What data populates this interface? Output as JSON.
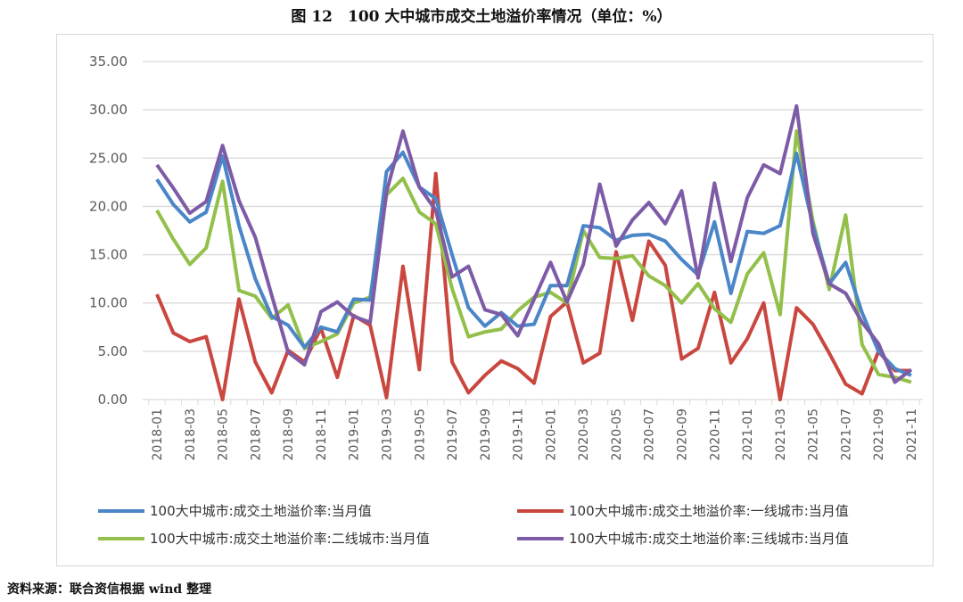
{
  "title": "图 12　100 大中城市成交土地溢价率情况（单位：%）",
  "source": "资料来源：联合资信根据 wind 整理",
  "chart_data": {
    "type": "line",
    "title": "图 12　100 大中城市成交土地溢价率情况（单位：%）",
    "xlabel": "",
    "ylabel": "",
    "ylim": [
      0,
      35
    ],
    "yticks": [
      "0.00",
      "5.00",
      "10.00",
      "15.00",
      "20.00",
      "25.00",
      "30.00",
      "35.00"
    ],
    "grid": true,
    "legend_position": "bottom",
    "x": [
      "2018-01",
      "2018-02",
      "2018-03",
      "2018-04",
      "2018-05",
      "2018-06",
      "2018-07",
      "2018-08",
      "2018-09",
      "2018-10",
      "2018-11",
      "2018-12",
      "2019-01",
      "2019-02",
      "2019-03",
      "2019-04",
      "2019-05",
      "2019-06",
      "2019-07",
      "2019-08",
      "2019-09",
      "2019-10",
      "2019-11",
      "2019-12",
      "2020-01",
      "2020-02",
      "2020-03",
      "2020-04",
      "2020-05",
      "2020-06",
      "2020-07",
      "2020-08",
      "2020-09",
      "2020-10",
      "2020-11",
      "2020-12",
      "2021-01",
      "2021-02",
      "2021-03",
      "2021-04",
      "2021-05",
      "2021-06",
      "2021-07",
      "2021-08",
      "2021-09",
      "2021-10",
      "2021-11"
    ],
    "xtick_labels": [
      "2018-01",
      "2018-03",
      "2018-05",
      "2018-07",
      "2018-09",
      "2018-11",
      "2019-01",
      "2019-03",
      "2019-05",
      "2019-07",
      "2019-09",
      "2019-11",
      "2020-01",
      "2020-03",
      "2020-05",
      "2020-07",
      "2020-09",
      "2020-11",
      "2021-01",
      "2021-03",
      "2021-05",
      "2021-07",
      "2021-09",
      "2021-11"
    ],
    "series": [
      {
        "name": "100大中城市:成交土地溢价率:当月值",
        "color": "#4a86c8",
        "values": [
          22.8,
          20.2,
          18.4,
          19.4,
          25.2,
          18.0,
          12.5,
          8.6,
          7.7,
          5.4,
          7.5,
          7.0,
          10.4,
          10.3,
          23.6,
          25.6,
          22.0,
          20.8,
          15.0,
          9.5,
          7.6,
          9.0,
          7.6,
          7.8,
          11.8,
          11.8,
          18.0,
          17.8,
          16.5,
          17.0,
          17.1,
          16.4,
          14.5,
          12.9,
          18.4,
          11.0,
          17.4,
          17.2,
          18.0,
          25.5,
          18.0,
          12.0,
          14.2,
          9.0,
          5.0,
          3.2,
          2.5
        ]
      },
      {
        "name": "100大中城市:成交土地溢价率:一线城市:当月值",
        "color": "#c9473f",
        "values": [
          10.9,
          6.9,
          6.0,
          6.5,
          0.0,
          10.4,
          3.9,
          0.7,
          5.1,
          3.9,
          7.4,
          2.3,
          8.7,
          7.7,
          0.2,
          13.8,
          3.1,
          23.4,
          3.9,
          0.7,
          2.5,
          4.0,
          3.2,
          1.7,
          8.6,
          10.1,
          3.8,
          4.8,
          15.3,
          8.2,
          16.4,
          13.9,
          4.2,
          5.3,
          11.1,
          3.8,
          6.3,
          10.0,
          0.0,
          9.5,
          7.8,
          4.8,
          1.6,
          0.6,
          5.0,
          3.0,
          3.0
        ]
      },
      {
        "name": "100大中城市:成交土地溢价率:二线城市:当月值",
        "color": "#92c04a",
        "values": [
          19.6,
          16.6,
          14.0,
          15.7,
          22.6,
          11.3,
          10.7,
          8.4,
          9.8,
          5.3,
          6.0,
          6.8,
          10.0,
          10.6,
          21.2,
          22.9,
          19.4,
          18.2,
          11.5,
          6.5,
          7.0,
          7.3,
          9.2,
          10.6,
          11.1,
          10.0,
          17.5,
          14.7,
          14.6,
          14.9,
          12.8,
          11.8,
          10.0,
          12.0,
          9.4,
          8.0,
          13.0,
          15.2,
          8.8,
          27.8,
          18.5,
          11.4,
          19.1,
          5.7,
          2.6,
          2.3,
          1.8
        ]
      },
      {
        "name": "100大中城市:成交土地溢价率:三线城市:当月值",
        "color": "#7d5ba6",
        "values": [
          24.3,
          21.9,
          19.3,
          20.5,
          26.3,
          20.6,
          16.8,
          10.8,
          4.9,
          3.6,
          9.1,
          10.1,
          8.6,
          8.0,
          21.5,
          27.8,
          22.0,
          19.6,
          12.7,
          13.8,
          9.3,
          8.8,
          6.6,
          10.4,
          14.2,
          10.1,
          14.0,
          22.3,
          15.9,
          18.6,
          20.4,
          18.2,
          21.6,
          12.6,
          22.4,
          14.3,
          20.9,
          24.3,
          23.4,
          30.4,
          17.2,
          12.0,
          11.0,
          8.0,
          5.8,
          1.8,
          3.1
        ]
      }
    ]
  }
}
